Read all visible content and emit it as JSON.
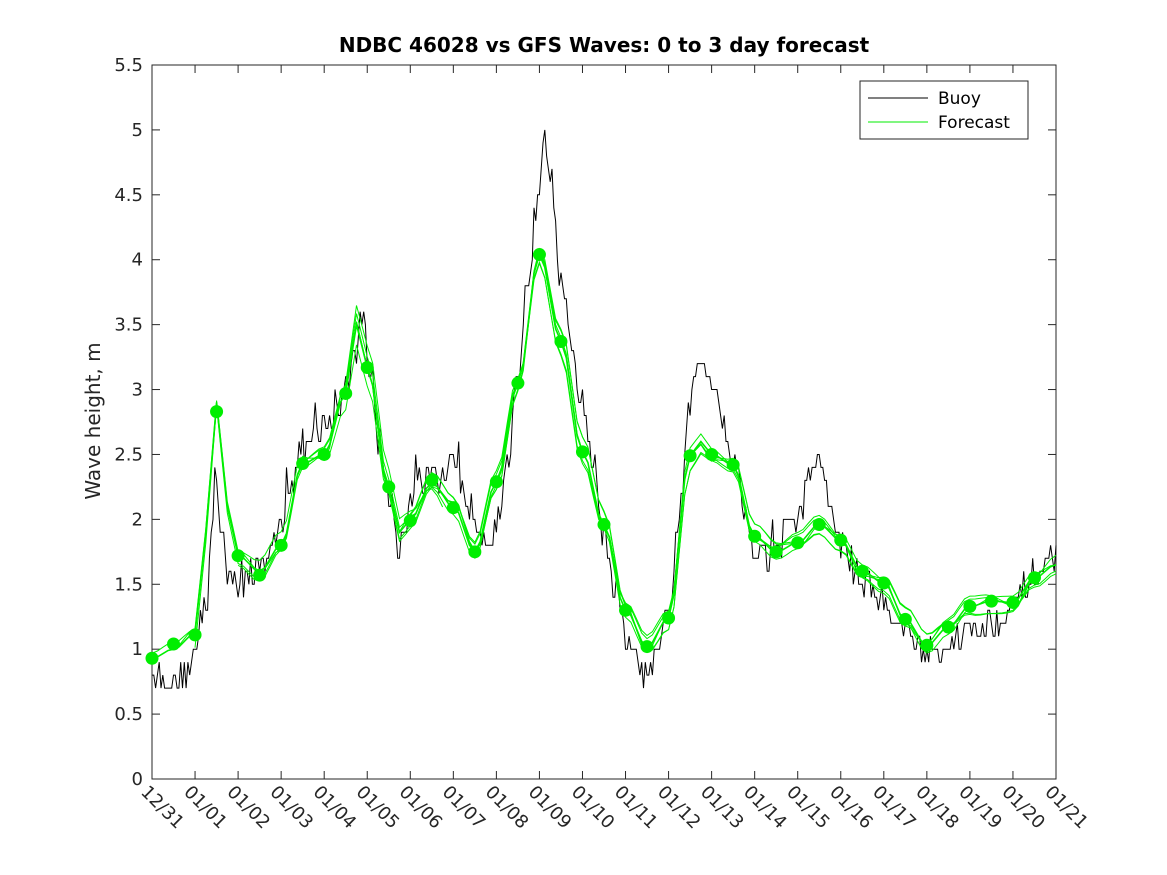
{
  "chart_data": {
    "type": "line",
    "title": "NDBC 46028 vs GFS Waves: 0 to 3 day forecast",
    "xlabel": "",
    "ylabel": "Wave height, m",
    "xlim": [
      0,
      21
    ],
    "ylim": [
      0,
      5.5
    ],
    "x_tick_labels": [
      "12/31",
      "01/01",
      "01/02",
      "01/03",
      "01/04",
      "01/05",
      "01/06",
      "01/07",
      "01/08",
      "01/09",
      "01/10",
      "01/11",
      "01/12",
      "01/13",
      "01/14",
      "01/15",
      "01/16",
      "01/17",
      "01/18",
      "01/19",
      "01/20",
      "01/21"
    ],
    "y_ticks": [
      0,
      0.5,
      1,
      1.5,
      2,
      2.5,
      3,
      3.5,
      4,
      4.5,
      5,
      5.5
    ],
    "y_tick_labels": [
      "0",
      "0.5",
      "1",
      "1.5",
      "2",
      "2.5",
      "3",
      "3.5",
      "4",
      "4.5",
      "5",
      "5.5"
    ],
    "legend": {
      "position": "top-right",
      "entries": [
        "Buoy",
        "Forecast"
      ]
    },
    "colors": {
      "buoy": "#000000",
      "forecast": "#00ee00",
      "axes": "#262626"
    },
    "buoy": {
      "name": "Buoy",
      "x": [
        0,
        0.25,
        0.5,
        0.75,
        1,
        1.25,
        1.4,
        1.5,
        1.6,
        1.75,
        2,
        2.25,
        2.5,
        2.75,
        3,
        3.25,
        3.5,
        3.75,
        4,
        4.25,
        4.5,
        4.75,
        4.9,
        5.1,
        5.25,
        5.5,
        5.75,
        6,
        6.25,
        6.5,
        6.75,
        7,
        7.25,
        7.5,
        7.75,
        8,
        8.25,
        8.5,
        8.75,
        9,
        9.1,
        9.25,
        9.5,
        9.75,
        10,
        10.25,
        10.5,
        10.75,
        11,
        11.25,
        11.5,
        11.75,
        12,
        12.25,
        12.5,
        12.75,
        13,
        13.25,
        13.5,
        13.75,
        14,
        14.25,
        14.5,
        14.75,
        15,
        15.25,
        15.5,
        15.75,
        16,
        16.25,
        16.5,
        16.75,
        17,
        17.25,
        17.5,
        17.75,
        18,
        18.25,
        18.5,
        18.75,
        19,
        19.25,
        19.5,
        19.75,
        20,
        20.25,
        20.5,
        20.75,
        21
      ],
      "values": [
        0.85,
        0.78,
        0.75,
        0.8,
        1.0,
        1.3,
        2.0,
        2.3,
        1.9,
        1.6,
        1.5,
        1.55,
        1.6,
        1.75,
        1.95,
        2.3,
        2.55,
        2.6,
        2.7,
        2.8,
        3.0,
        3.3,
        3.6,
        3.1,
        2.6,
        2.2,
        1.8,
        2.1,
        2.3,
        2.35,
        2.3,
        2.5,
        2.2,
        2.0,
        1.85,
        1.9,
        2.4,
        3.1,
        3.9,
        4.6,
        5.0,
        4.7,
        3.8,
        3.3,
        2.9,
        2.4,
        1.9,
        1.5,
        1.1,
        0.9,
        0.8,
        0.95,
        1.3,
        2.0,
        2.9,
        3.2,
        3.1,
        2.8,
        2.5,
        2.1,
        1.8,
        1.7,
        1.75,
        1.9,
        2.0,
        2.3,
        2.5,
        2.1,
        1.8,
        1.65,
        1.55,
        1.45,
        1.35,
        1.25,
        1.15,
        1.05,
        0.95,
        0.95,
        1.05,
        1.1,
        1.15,
        1.15,
        1.2,
        1.25,
        1.35,
        1.45,
        1.55,
        1.65,
        1.75
      ]
    },
    "forecast": {
      "name": "Forecast",
      "x": [
        0,
        0.5,
        1,
        1.25,
        1.5,
        1.75,
        2,
        2.5,
        3,
        3.5,
        4,
        4.5,
        4.75,
        5,
        5.5,
        5.75,
        6,
        6.5,
        7,
        7.5,
        8,
        8.5,
        9,
        9.5,
        10,
        10.5,
        11,
        11.5,
        12,
        12.5,
        12.75,
        13,
        13.5,
        14,
        14.5,
        15,
        15.5,
        16,
        16.5,
        17,
        17.5,
        18,
        18.5,
        19,
        19.5,
        20,
        20.5,
        21
      ],
      "values": [
        0.93,
        1.0,
        1.12,
        1.9,
        2.9,
        2.1,
        1.72,
        1.6,
        1.8,
        2.43,
        2.5,
        2.97,
        3.5,
        3.17,
        2.25,
        1.9,
        2.0,
        2.28,
        2.1,
        1.75,
        2.29,
        3.05,
        4.04,
        3.37,
        2.52,
        1.96,
        1.3,
        1.02,
        1.24,
        2.49,
        2.6,
        2.5,
        2.42,
        1.87,
        1.75,
        1.82,
        1.96,
        1.84,
        1.6,
        1.51,
        1.23,
        1.03,
        1.17,
        1.33,
        1.37,
        1.36,
        1.55,
        1.65
      ]
    },
    "forecast_markers": {
      "x": [
        0,
        0.5,
        1,
        1.5,
        2,
        2.5,
        3,
        3.5,
        4,
        4.5,
        5,
        5.5,
        6,
        6.5,
        7,
        7.5,
        8,
        8.5,
        9,
        9.5,
        10,
        10.5,
        11,
        11.5,
        12,
        12.5,
        13,
        13.5,
        14,
        14.5,
        15,
        15.5,
        16,
        16.5,
        17,
        17.5,
        18,
        18.5,
        19,
        19.5,
        20,
        20.5
      ],
      "values": [
        0.93,
        1.04,
        1.11,
        2.83,
        1.72,
        1.57,
        1.8,
        2.43,
        2.5,
        2.97,
        3.17,
        2.25,
        1.99,
        2.3,
        2.09,
        1.75,
        2.29,
        3.05,
        4.04,
        3.37,
        2.52,
        1.96,
        1.3,
        1.02,
        1.24,
        2.49,
        2.5,
        2.42,
        1.87,
        1.75,
        1.82,
        1.96,
        1.84,
        1.6,
        1.51,
        1.23,
        1.03,
        1.17,
        1.33,
        1.37,
        1.36,
        1.55
      ]
    }
  }
}
